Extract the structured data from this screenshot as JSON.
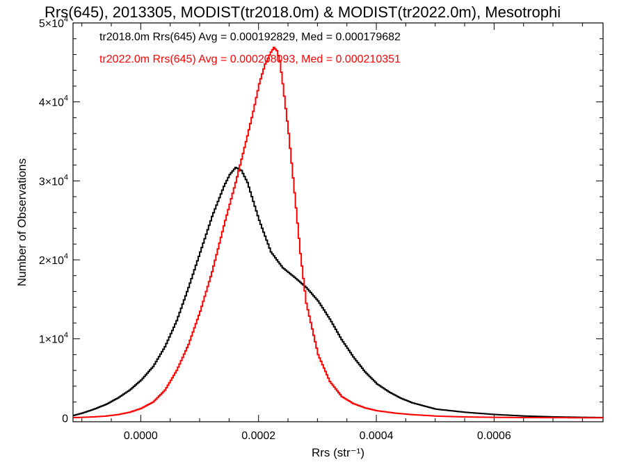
{
  "chart_data": {
    "type": "line",
    "title": "Rrs(645), 2013305, MODIST(tr2018.0m) & MODIST(tr2022.0m), Mesotrophi",
    "xlabel": "Rrs (str⁻¹)",
    "ylabel": "Number of Observations",
    "xlim": [
      -0.000115,
      0.000785
    ],
    "ylim": [
      -500,
      50000
    ],
    "x_ticks": [
      0.0,
      0.0002,
      0.0004,
      0.0006
    ],
    "x_tick_labels": [
      "0.0000",
      "0.0002",
      "0.0004",
      "0.0006"
    ],
    "y_ticks": [
      0,
      10000,
      20000,
      30000,
      40000,
      50000
    ],
    "y_tick_labels": [
      {
        "mant": "0",
        "exp": ""
      },
      {
        "mant": "1×10",
        "exp": "4"
      },
      {
        "mant": "2×10",
        "exp": "4"
      },
      {
        "mant": "3×10",
        "exp": "4"
      },
      {
        "mant": "4×10",
        "exp": "4"
      },
      {
        "mant": "5×10",
        "exp": "4"
      }
    ],
    "step_style": "histogram",
    "annotations": [
      {
        "text": "tr2018.0m Rrs(645) Avg = 0.000192829, Med = 0.000179682",
        "color": "#000000"
      },
      {
        "text": "tr2022.0m Rrs(645) Avg = 0.000208093, Med = 0.000210351",
        "color": "#ff0000"
      }
    ],
    "series": [
      {
        "color": "#000000",
        "x": [
          -0.000115,
          -0.0001,
          -8e-05,
          -6e-05,
          -4e-05,
          -2e-05,
          0.0,
          2e-05,
          4e-05,
          6e-05,
          8e-05,
          0.0001,
          0.00012,
          0.00014,
          0.00015,
          0.00016,
          0.00017,
          0.00018,
          0.0002,
          0.00022,
          0.00024,
          0.00026,
          0.00028,
          0.0003,
          0.00032,
          0.00034,
          0.00036,
          0.00038,
          0.0004,
          0.00042,
          0.00044,
          0.00046,
          0.0005,
          0.00055,
          0.0006,
          0.00065,
          0.0007,
          0.00075,
          0.000785
        ],
        "values": [
          300,
          600,
          1100,
          1700,
          2500,
          3500,
          4800,
          6500,
          9000,
          12300,
          16500,
          21000,
          25500,
          29300,
          30800,
          31700,
          31300,
          29800,
          25000,
          21000,
          19000,
          17800,
          16500,
          14800,
          12500,
          9900,
          7700,
          5800,
          4300,
          3300,
          2500,
          1900,
          1100,
          700,
          420,
          230,
          120,
          60,
          30
        ]
      },
      {
        "color": "#ff0000",
        "x": [
          -0.000115,
          -0.0001,
          -8e-05,
          -6e-05,
          -4e-05,
          -2e-05,
          0.0,
          2e-05,
          4e-05,
          6e-05,
          8e-05,
          0.0001,
          0.00012,
          0.00014,
          0.00016,
          0.00018,
          0.00019,
          0.0002,
          0.00021,
          0.00022,
          0.000225,
          0.00023,
          0.000235,
          0.00024,
          0.00025,
          0.00026,
          0.00027,
          0.00028,
          0.0003,
          0.00032,
          0.00034,
          0.00036,
          0.00038,
          0.0004,
          0.00043,
          0.00046,
          0.0005,
          0.00055,
          0.0006,
          0.00065,
          0.0007,
          0.00075,
          0.000785
        ],
        "values": [
          30,
          60,
          120,
          220,
          400,
          700,
          1200,
          2000,
          3500,
          6000,
          9300,
          13500,
          18500,
          24300,
          29800,
          35700,
          38800,
          42300,
          44800,
          46300,
          46900,
          46500,
          45200,
          42300,
          36000,
          28500,
          20800,
          14500,
          8000,
          4600,
          2700,
          1800,
          1250,
          900,
          600,
          400,
          220,
          110,
          60,
          30,
          15,
          8,
          4
        ]
      }
    ]
  }
}
